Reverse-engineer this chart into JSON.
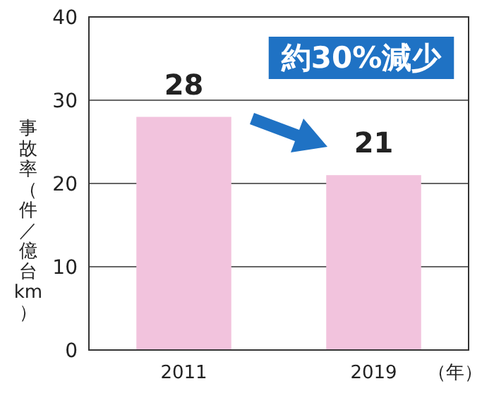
{
  "chart_data": {
    "type": "bar",
    "categories": [
      "2011",
      "2019"
    ],
    "values": [
      28,
      21
    ],
    "color": "#f2c3dd",
    "ylim": [
      0,
      40
    ],
    "yticks": [
      0,
      10,
      20,
      30,
      40
    ],
    "grid": "y",
    "data_labels": true,
    "ylabel": "事故率（件／億台km）",
    "xlabel": "（年）",
    "annotations": [
      "約30%減少"
    ]
  }
}
